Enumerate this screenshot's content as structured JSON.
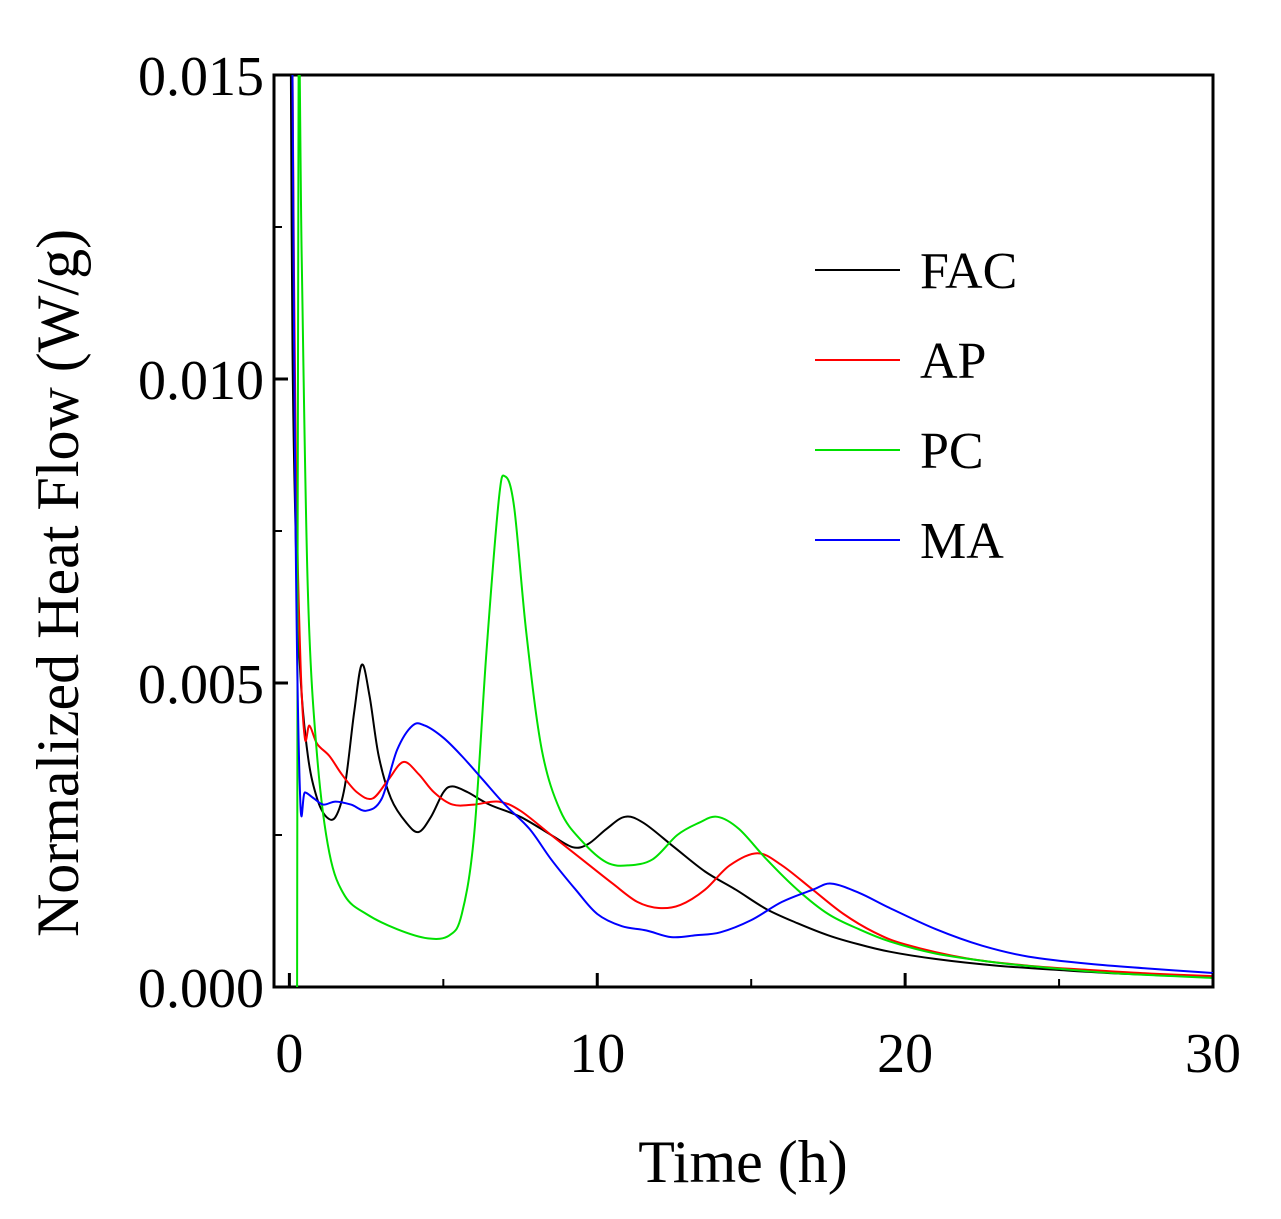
{
  "chart_data": {
    "type": "line",
    "title": "",
    "xlabel": "Time (h)",
    "ylabel": "Normalized Heat Flow (W/g)",
    "xlim": [
      -0.5,
      30
    ],
    "ylim": [
      0,
      0.015
    ],
    "grid": false,
    "legend_position": "top-right",
    "xticks": [
      0,
      10,
      20,
      30
    ],
    "xtick_labels": [
      "0",
      "10",
      "20",
      "30"
    ],
    "yticks": [
      0,
      0.005,
      0.01,
      0.015
    ],
    "ytick_labels": [
      "0.000",
      "0.005",
      "0.010",
      "0.015"
    ],
    "series": [
      {
        "name": "FAC",
        "color": "#000000",
        "points": [
          [
            0.05,
            0.015
          ],
          [
            0.1,
            0.0105
          ],
          [
            0.2,
            0.0075
          ],
          [
            0.35,
            0.0052
          ],
          [
            0.6,
            0.0038
          ],
          [
            0.9,
            0.0031
          ],
          [
            1.2,
            0.0028
          ],
          [
            1.5,
            0.0028
          ],
          [
            1.8,
            0.0033
          ],
          [
            2.1,
            0.0045
          ],
          [
            2.35,
            0.0053
          ],
          [
            2.6,
            0.0048
          ],
          [
            2.9,
            0.0038
          ],
          [
            3.3,
            0.0031
          ],
          [
            3.8,
            0.0027
          ],
          [
            4.2,
            0.00255
          ],
          [
            4.6,
            0.0028
          ],
          [
            5.0,
            0.0032
          ],
          [
            5.3,
            0.0033
          ],
          [
            5.8,
            0.0032
          ],
          [
            6.5,
            0.003
          ],
          [
            7.5,
            0.0028
          ],
          [
            8.5,
            0.0025
          ],
          [
            9.2,
            0.0023
          ],
          [
            9.7,
            0.00235
          ],
          [
            10.3,
            0.0026
          ],
          [
            10.9,
            0.0028
          ],
          [
            11.5,
            0.0027
          ],
          [
            12.5,
            0.0023
          ],
          [
            13.5,
            0.0019
          ],
          [
            14.5,
            0.0016
          ],
          [
            15.5,
            0.00128
          ],
          [
            16.5,
            0.00105
          ],
          [
            17.5,
            0.00085
          ],
          [
            18.5,
            0.0007
          ],
          [
            19.5,
            0.00058
          ],
          [
            21,
            0.00046
          ],
          [
            23,
            0.00035
          ],
          [
            25,
            0.00028
          ],
          [
            27,
            0.00022
          ],
          [
            30,
            0.00016
          ]
        ]
      },
      {
        "name": "AP",
        "color": "#ff0000",
        "points": [
          [
            0.1,
            0.015
          ],
          [
            0.2,
            0.009
          ],
          [
            0.35,
            0.0055
          ],
          [
            0.5,
            0.0041
          ],
          [
            0.65,
            0.0043
          ],
          [
            0.9,
            0.004
          ],
          [
            1.3,
            0.0038
          ],
          [
            1.7,
            0.0035
          ],
          [
            2.2,
            0.0032
          ],
          [
            2.7,
            0.0031
          ],
          [
            3.2,
            0.0034
          ],
          [
            3.7,
            0.0037
          ],
          [
            4.2,
            0.0035
          ],
          [
            4.7,
            0.0032
          ],
          [
            5.3,
            0.003
          ],
          [
            6.0,
            0.003
          ],
          [
            6.8,
            0.00305
          ],
          [
            7.5,
            0.0029
          ],
          [
            8.5,
            0.0025
          ],
          [
            9.5,
            0.0021
          ],
          [
            10.5,
            0.0017
          ],
          [
            11.3,
            0.0014
          ],
          [
            12.0,
            0.0013
          ],
          [
            12.7,
            0.00135
          ],
          [
            13.5,
            0.0016
          ],
          [
            14.3,
            0.002
          ],
          [
            15.2,
            0.0022
          ],
          [
            16.0,
            0.002
          ],
          [
            17.0,
            0.0016
          ],
          [
            18.0,
            0.0012
          ],
          [
            19.0,
            0.0009
          ],
          [
            20.0,
            0.0007
          ],
          [
            22,
            0.00047
          ],
          [
            24,
            0.00035
          ],
          [
            26,
            0.00028
          ],
          [
            28,
            0.00022
          ],
          [
            30,
            0.00018
          ]
        ]
      },
      {
        "name": "PC",
        "color": "#00e000",
        "points": [
          [
            0.25,
            0
          ],
          [
            0.3,
            0.015
          ],
          [
            0.4,
            0.012
          ],
          [
            0.6,
            0.0065
          ],
          [
            0.9,
            0.0038
          ],
          [
            1.3,
            0.0022
          ],
          [
            1.8,
            0.0015
          ],
          [
            2.5,
            0.0012
          ],
          [
            3.5,
            0.00095
          ],
          [
            4.5,
            0.0008
          ],
          [
            5.2,
            0.00085
          ],
          [
            5.6,
            0.0012
          ],
          [
            6.0,
            0.0025
          ],
          [
            6.4,
            0.0055
          ],
          [
            6.8,
            0.008
          ],
          [
            7.0,
            0.0084
          ],
          [
            7.3,
            0.0079
          ],
          [
            7.7,
            0.0058
          ],
          [
            8.2,
            0.0039
          ],
          [
            8.8,
            0.0029
          ],
          [
            9.5,
            0.0024
          ],
          [
            10.3,
            0.00205
          ],
          [
            11.0,
            0.002
          ],
          [
            11.8,
            0.0021
          ],
          [
            12.6,
            0.0025
          ],
          [
            13.3,
            0.0027
          ],
          [
            13.9,
            0.0028
          ],
          [
            14.6,
            0.0026
          ],
          [
            15.5,
            0.0021
          ],
          [
            16.5,
            0.0016
          ],
          [
            17.5,
            0.0012
          ],
          [
            18.5,
            0.00095
          ],
          [
            19.5,
            0.00075
          ],
          [
            21,
            0.00055
          ],
          [
            23,
            0.0004
          ],
          [
            25,
            0.0003
          ],
          [
            27,
            0.00022
          ],
          [
            30,
            0.00015
          ]
        ]
      },
      {
        "name": "MA",
        "color": "#0000ff",
        "points": [
          [
            0.1,
            0.015
          ],
          [
            0.2,
            0.0075
          ],
          [
            0.35,
            0.0031
          ],
          [
            0.5,
            0.0032
          ],
          [
            0.8,
            0.0031
          ],
          [
            1.1,
            0.003
          ],
          [
            1.5,
            0.00305
          ],
          [
            2.0,
            0.003
          ],
          [
            2.5,
            0.0029
          ],
          [
            3.0,
            0.0031
          ],
          [
            3.5,
            0.0039
          ],
          [
            4.0,
            0.0043
          ],
          [
            4.4,
            0.0043
          ],
          [
            5.0,
            0.0041
          ],
          [
            5.6,
            0.0038
          ],
          [
            6.3,
            0.0034
          ],
          [
            7.0,
            0.003
          ],
          [
            7.8,
            0.0026
          ],
          [
            8.5,
            0.0021
          ],
          [
            9.3,
            0.0016
          ],
          [
            10.0,
            0.0012
          ],
          [
            10.8,
            0.001
          ],
          [
            11.6,
            0.00093
          ],
          [
            12.4,
            0.00082
          ],
          [
            13.2,
            0.00085
          ],
          [
            14.0,
            0.0009
          ],
          [
            15.0,
            0.0011
          ],
          [
            16.0,
            0.0014
          ],
          [
            17.0,
            0.0016
          ],
          [
            17.6,
            0.0017
          ],
          [
            18.5,
            0.00155
          ],
          [
            19.5,
            0.0013
          ],
          [
            21,
            0.00095
          ],
          [
            22.5,
            0.00068
          ],
          [
            24,
            0.0005
          ],
          [
            26,
            0.00038
          ],
          [
            28,
            0.0003
          ],
          [
            30,
            0.00023
          ]
        ]
      }
    ]
  }
}
